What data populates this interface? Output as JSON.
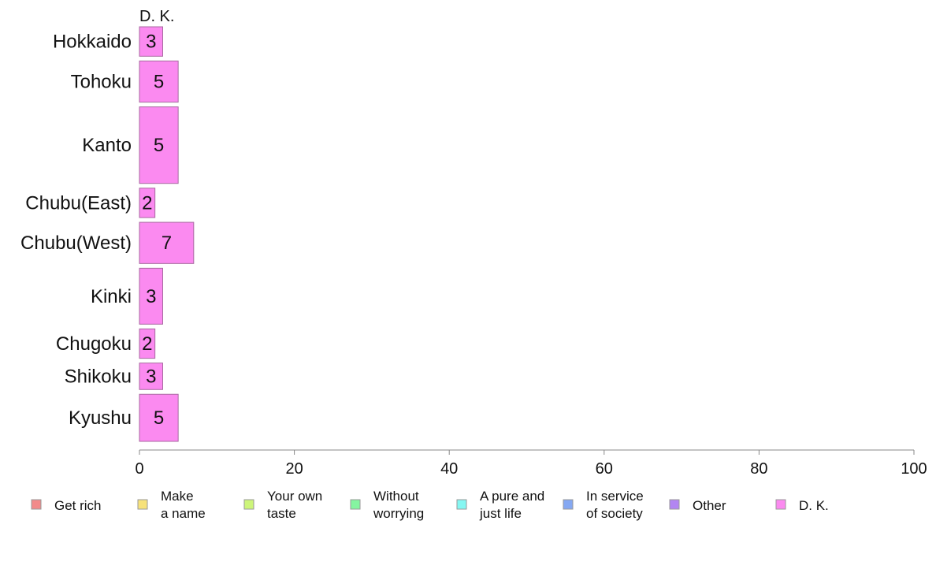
{
  "chart_data": {
    "type": "bar",
    "orientation": "horizontal",
    "stacked": true,
    "column_label": "D. K.",
    "categories": [
      "Hokkaido",
      "Tohoku",
      "Kanto",
      "Chubu(East)",
      "Chubu(West)",
      "Kinki",
      "Chugoku",
      "Shikoku",
      "Kyushu"
    ],
    "series": [
      {
        "name": "Get rich",
        "color": "#f28a8a",
        "values": [
          0,
          0,
          0,
          0,
          0,
          0,
          0,
          0,
          0
        ]
      },
      {
        "name": "Make\na name",
        "color": "#f7e27a",
        "values": [
          0,
          0,
          0,
          0,
          0,
          0,
          0,
          0,
          0
        ]
      },
      {
        "name": "Your own\ntaste",
        "color": "#cdf57a",
        "values": [
          0,
          0,
          0,
          0,
          0,
          0,
          0,
          0,
          0
        ]
      },
      {
        "name": "Without\nworrying",
        "color": "#85f5a0",
        "values": [
          0,
          0,
          0,
          0,
          0,
          0,
          0,
          0,
          0
        ]
      },
      {
        "name": "A pure and\njust life",
        "color": "#85f7f2",
        "values": [
          0,
          0,
          0,
          0,
          0,
          0,
          0,
          0,
          0
        ]
      },
      {
        "name": "In service\nof society",
        "color": "#85a8f2",
        "values": [
          0,
          0,
          0,
          0,
          0,
          0,
          0,
          0,
          0
        ]
      },
      {
        "name": "Other",
        "color": "#b285f2",
        "values": [
          0,
          0,
          0,
          0,
          0,
          0,
          0,
          0,
          0
        ]
      },
      {
        "name": "D. K.",
        "color": "#fb8af0",
        "values": [
          3,
          5,
          5,
          2,
          7,
          3,
          2,
          3,
          5
        ]
      }
    ],
    "data_labels": [
      [
        "3"
      ],
      [
        "5"
      ],
      [
        "5"
      ],
      [
        "2"
      ],
      [
        "7"
      ],
      [
        "3"
      ],
      [
        "2"
      ],
      [
        "3"
      ],
      [
        "5"
      ]
    ],
    "relative_heights": [
      1,
      1.4,
      2.6,
      1,
      1.4,
      1.9,
      1,
      0.9,
      1.6
    ],
    "xlim": [
      0,
      100
    ],
    "xticks": [
      0,
      20,
      40,
      60,
      80,
      100
    ],
    "grid": false,
    "legend_position": "bottom"
  }
}
